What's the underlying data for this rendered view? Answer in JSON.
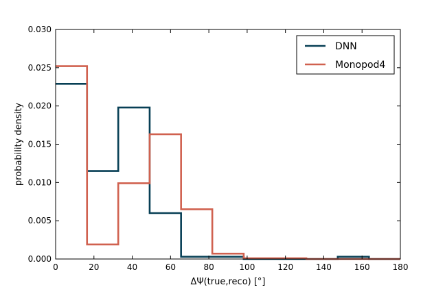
{
  "chart_data": {
    "type": "step",
    "title": "",
    "xlabel": "ΔΨ(true,reco) [°]",
    "ylabel": "probability density",
    "xlim": [
      0,
      180
    ],
    "ylim": [
      0,
      0.03
    ],
    "xticks": [
      0,
      20,
      40,
      60,
      80,
      100,
      120,
      140,
      160,
      180
    ],
    "xtick_labels": [
      "0",
      "20",
      "40",
      "60",
      "80",
      "100",
      "120",
      "140",
      "160",
      "180"
    ],
    "yticks": [
      0,
      0.005,
      0.01,
      0.015,
      0.02,
      0.025,
      0.03
    ],
    "ytick_labels": [
      "0.000",
      "0.005",
      "0.010",
      "0.015",
      "0.020",
      "0.025",
      "0.030"
    ],
    "grid": false,
    "legend_position": "top-right",
    "bin_edges": [
      0,
      16.4,
      32.7,
      49.1,
      65.5,
      81.8,
      98.2,
      114.5,
      130.9,
      147.3,
      163.6,
      180
    ],
    "series": [
      {
        "name": "DNN",
        "color": "#073f55",
        "values": [
          0.0229,
          0.0115,
          0.0198,
          0.006,
          0.0003,
          0.0003,
          0.0,
          0.0,
          0.0,
          0.0003,
          0.0
        ]
      },
      {
        "name": "Monopod4",
        "color": "#d0614f",
        "values": [
          0.0252,
          0.0019,
          0.0099,
          0.0163,
          0.0065,
          0.0007,
          0.0001,
          0.0001,
          0.0,
          0.0,
          0.0
        ]
      }
    ]
  }
}
